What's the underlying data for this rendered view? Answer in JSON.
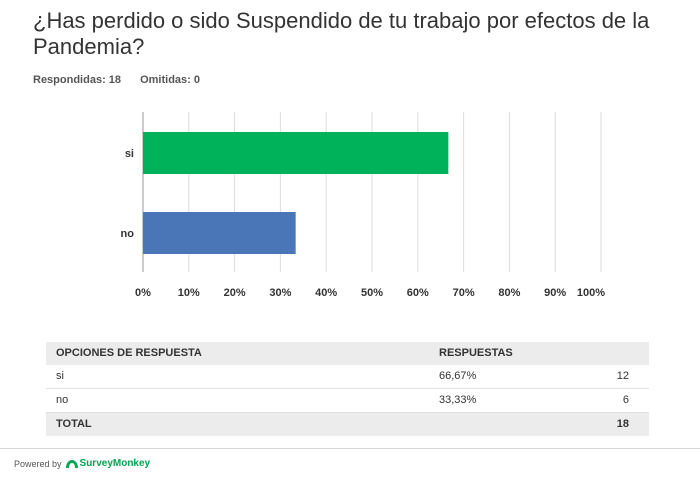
{
  "question": {
    "title": "¿Has perdido o sido Suspendido de tu trabajo por efectos de la Pandemia?",
    "answered_label": "Respondidas: 18",
    "skipped_label": "Omitidas: 0"
  },
  "chart_data": {
    "type": "bar",
    "orientation": "horizontal",
    "categories": [
      "si",
      "no"
    ],
    "values": [
      66.67,
      33.33
    ],
    "colors": [
      "#00b35b",
      "#4a76b8"
    ],
    "xlim": [
      0,
      100
    ],
    "xticks": [
      "0%",
      "10%",
      "20%",
      "30%",
      "40%",
      "50%",
      "60%",
      "70%",
      "80%",
      "90%",
      "100%"
    ],
    "grid": true,
    "title": "",
    "xlabel": "",
    "ylabel": ""
  },
  "table": {
    "headers": {
      "options": "OPCIONES DE RESPUESTA",
      "responses": "RESPUESTAS"
    },
    "rows": [
      {
        "option": "si",
        "percent": "66,67%",
        "count": "12"
      },
      {
        "option": "no",
        "percent": "33,33%",
        "count": "6"
      }
    ],
    "total": {
      "label": "TOTAL",
      "count": "18"
    }
  },
  "footer": {
    "powered_by": "Powered by",
    "brand": "SurveyMonkey",
    "brand_color": "#00a651",
    "brand_icon": "surveymonkey-logo-icon"
  }
}
